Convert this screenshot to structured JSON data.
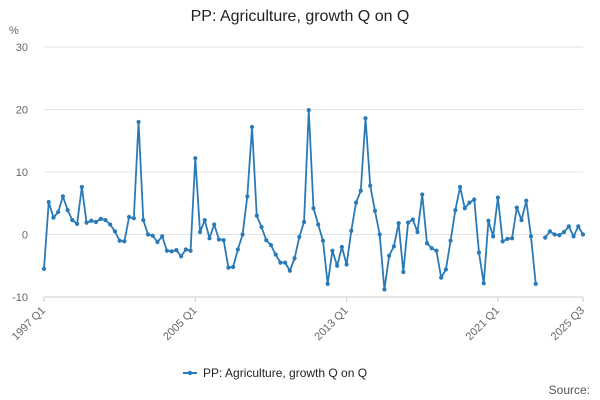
{
  "chart_data": {
    "type": "line",
    "title": "PP: Agriculture, growth Q on Q",
    "ylabel": "%",
    "xlabel": "",
    "ylim": [
      -10,
      30
    ],
    "yticks": [
      -10,
      0,
      10,
      20,
      30
    ],
    "xtick_labels": [
      "1997 Q1",
      "2005 Q1",
      "2013 Q1",
      "2021 Q1",
      "2025 Q3"
    ],
    "grid": true,
    "legend_placement": "bottom-center",
    "series_color": "#2A7AB8",
    "source_label": "Source:",
    "series": [
      {
        "name": "PP: Agriculture, growth Q on Q",
        "values": [
          -5.5,
          5.2,
          2.7,
          3.6,
          6.1,
          3.9,
          2.3,
          1.7,
          7.6,
          1.9,
          2.2,
          2.0,
          2.5,
          2.3,
          1.6,
          0.5,
          -1.0,
          -1.1,
          2.8,
          2.6,
          18.0,
          2.3,
          0.0,
          -0.2,
          -1.2,
          -0.3,
          -2.6,
          -2.7,
          -2.5,
          -3.5,
          -2.4,
          -2.6,
          12.2,
          0.4,
          2.3,
          -0.6,
          1.6,
          -0.8,
          -0.9,
          -5.3,
          -5.2,
          -2.4,
          0.0,
          6.1,
          17.2,
          3.0,
          1.2,
          -0.9,
          -1.7,
          -3.2,
          -4.5,
          -4.5,
          -5.8,
          -3.8,
          -0.4,
          2.0,
          19.9,
          4.2,
          1.6,
          -1.0,
          -7.9,
          -2.6,
          -5.0,
          -2.0,
          -4.8,
          0.6,
          5.1,
          7.0,
          18.6,
          7.8,
          3.8,
          0.0,
          -8.8,
          -3.4,
          -1.9,
          1.8,
          -6.0,
          1.9,
          2.4,
          0.4,
          6.4,
          -1.4,
          -2.2,
          -2.6,
          -6.9,
          -5.6,
          -1.0,
          3.9,
          7.6,
          4.2,
          5.1,
          5.6,
          -2.9,
          -7.8,
          2.2,
          -0.3,
          5.9,
          -1.1,
          -0.7,
          -0.6,
          4.3,
          2.3,
          5.4,
          -0.3,
          -7.9,
          null,
          -0.5,
          0.5,
          0.0,
          -0.1,
          0.4,
          1.3,
          -0.3,
          1.3,
          0.0
        ]
      }
    ]
  }
}
